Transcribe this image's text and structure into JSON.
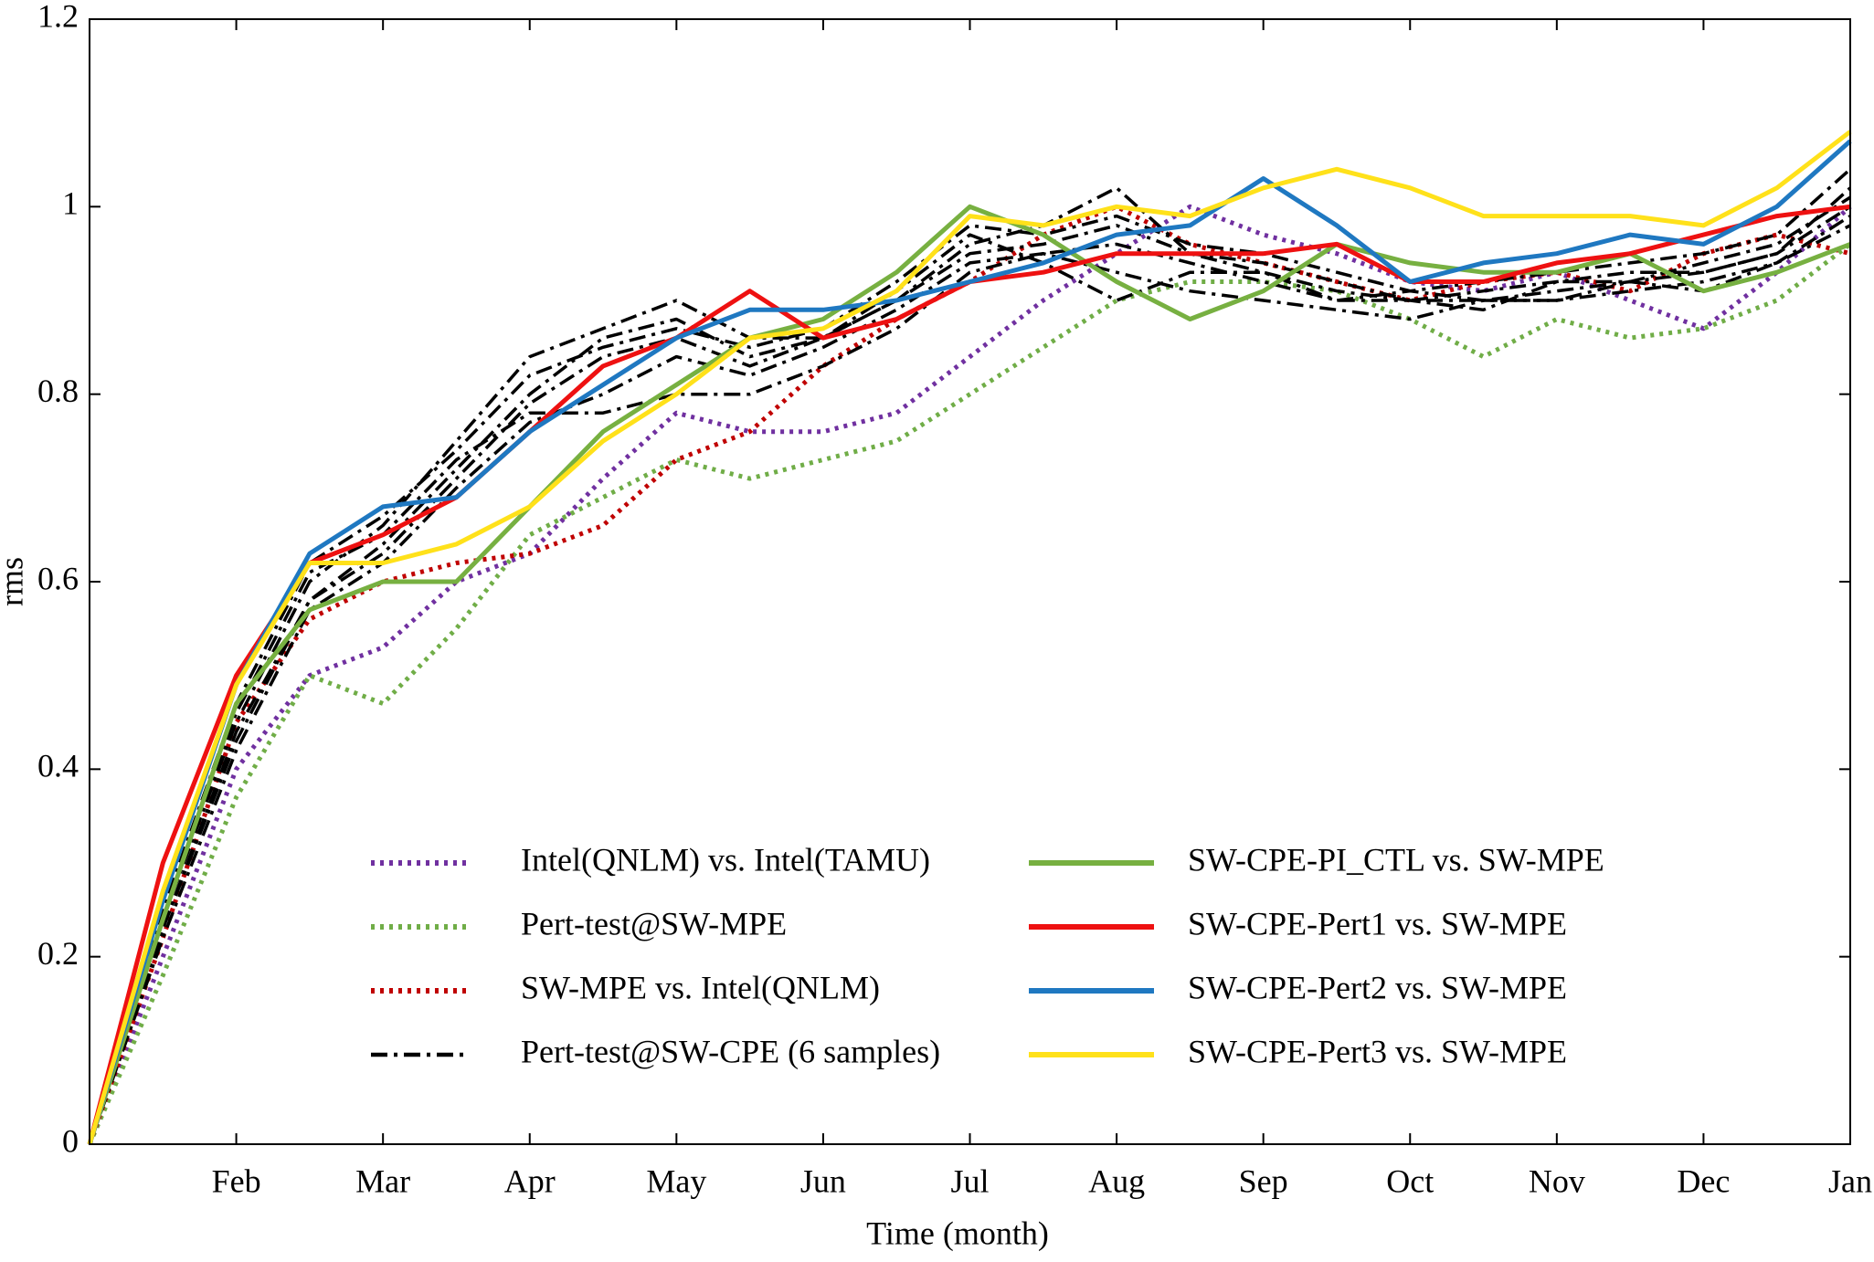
{
  "chart_data": {
    "type": "line",
    "x_label": "Time (month)",
    "y_label": "rms",
    "categories": [
      null,
      null,
      "Feb",
      null,
      "Mar",
      null,
      "Apr",
      null,
      "May",
      null,
      "Jun",
      null,
      "Jul",
      null,
      "Aug",
      null,
      "Sep",
      null,
      "Oct",
      null,
      "Nov",
      null,
      "Dec",
      null,
      "Jan"
    ],
    "ylim": [
      0,
      1.2
    ],
    "yticks": [
      0,
      0.2,
      0.4,
      0.6,
      0.8,
      1,
      1.2
    ],
    "series": [
      {
        "name": "Intel(QNLM) vs. Intel(TAMU)",
        "color": "#7030a0",
        "style": "dotted",
        "values": [
          0,
          0.2,
          0.4,
          0.5,
          0.53,
          0.6,
          0.63,
          0.71,
          0.78,
          0.76,
          0.76,
          0.78,
          0.84,
          0.9,
          0.95,
          1.0,
          0.97,
          0.95,
          0.92,
          0.91,
          0.93,
          0.9,
          0.87,
          0.93,
          1.0
        ]
      },
      {
        "name": "Pert-test@SW-MPE",
        "color": "#70ad47",
        "style": "dotted",
        "values": [
          0,
          0.18,
          0.37,
          0.5,
          0.47,
          0.55,
          0.65,
          0.69,
          0.73,
          0.71,
          0.73,
          0.75,
          0.8,
          0.85,
          0.9,
          0.92,
          0.92,
          0.91,
          0.88,
          0.84,
          0.88,
          0.86,
          0.87,
          0.9,
          0.96
        ]
      },
      {
        "name": "SW-MPE vs. Intel(QNLM)",
        "color": "#c00000",
        "style": "dotted",
        "values": [
          0,
          0.22,
          0.45,
          0.56,
          0.6,
          0.62,
          0.63,
          0.66,
          0.73,
          0.76,
          0.83,
          0.88,
          0.92,
          0.97,
          1.0,
          0.96,
          0.94,
          0.92,
          0.9,
          0.92,
          0.93,
          0.91,
          0.95,
          0.97,
          0.95
        ]
      },
      {
        "name": "Pert-test@SW-CPE (6 samples)",
        "color": "#000000",
        "style": "dashdot",
        "samples": [
          [
            0,
            0.24,
            0.45,
            0.6,
            0.66,
            0.75,
            0.84,
            0.87,
            0.9,
            0.86,
            0.86,
            0.9,
            0.96,
            0.98,
            1.02,
            0.95,
            0.93,
            0.91,
            0.9,
            0.9,
            0.91,
            0.92,
            0.93,
            0.95,
            1.02
          ],
          [
            0,
            0.23,
            0.44,
            0.58,
            0.64,
            0.72,
            0.8,
            0.86,
            0.88,
            0.84,
            0.86,
            0.9,
            0.95,
            0.96,
            0.98,
            0.95,
            0.94,
            0.92,
            0.9,
            0.91,
            0.92,
            0.93,
            0.93,
            0.95,
            1.0
          ],
          [
            0,
            0.22,
            0.42,
            0.57,
            0.62,
            0.7,
            0.77,
            0.8,
            0.84,
            0.82,
            0.85,
            0.89,
            0.94,
            0.95,
            0.93,
            0.91,
            0.9,
            0.89,
            0.88,
            0.9,
            0.9,
            0.91,
            0.92,
            0.94,
            0.99
          ],
          [
            0,
            0.24,
            0.46,
            0.61,
            0.65,
            0.73,
            0.78,
            0.78,
            0.8,
            0.8,
            0.83,
            0.87,
            0.93,
            0.95,
            0.96,
            0.94,
            0.92,
            0.9,
            0.9,
            0.89,
            0.92,
            0.92,
            0.94,
            0.96,
            1.01
          ],
          [
            0,
            0.23,
            0.43,
            0.58,
            0.63,
            0.71,
            0.79,
            0.84,
            0.86,
            0.83,
            0.86,
            0.91,
            0.97,
            0.94,
            0.9,
            0.93,
            0.93,
            0.9,
            0.91,
            0.9,
            0.9,
            0.92,
            0.91,
            0.94,
            0.98
          ],
          [
            0,
            0.25,
            0.47,
            0.62,
            0.67,
            0.74,
            0.82,
            0.85,
            0.87,
            0.85,
            0.87,
            0.92,
            0.98,
            0.97,
            0.99,
            0.96,
            0.95,
            0.93,
            0.91,
            0.92,
            0.93,
            0.94,
            0.95,
            0.97,
            1.04
          ]
        ]
      },
      {
        "name": "SW-CPE-PI_CTL vs.  SW-MPE",
        "color": "#77b041",
        "style": "solid",
        "values": [
          0,
          0.24,
          0.47,
          0.57,
          0.6,
          0.6,
          0.68,
          0.76,
          0.81,
          0.86,
          0.88,
          0.93,
          1.0,
          0.97,
          0.92,
          0.88,
          0.91,
          0.96,
          0.94,
          0.93,
          0.93,
          0.95,
          0.91,
          0.93,
          0.96
        ]
      },
      {
        "name": "SW-CPE-Pert1 vs.  SW-MPE",
        "color": "#ee1111",
        "style": "solid",
        "values": [
          0,
          0.3,
          0.5,
          0.62,
          0.65,
          0.69,
          0.76,
          0.83,
          0.86,
          0.91,
          0.86,
          0.88,
          0.92,
          0.93,
          0.95,
          0.95,
          0.95,
          0.96,
          0.92,
          0.92,
          0.94,
          0.95,
          0.97,
          0.99,
          1.0
        ]
      },
      {
        "name": "SW-CPE-Pert2 vs.  SW-MPE",
        "color": "#1f78c1",
        "style": "solid",
        "values": [
          0,
          0.26,
          0.49,
          0.63,
          0.68,
          0.69,
          0.76,
          0.81,
          0.86,
          0.89,
          0.89,
          0.9,
          0.92,
          0.94,
          0.97,
          0.98,
          1.03,
          0.98,
          0.92,
          0.94,
          0.95,
          0.97,
          0.96,
          1.0,
          1.07
        ]
      },
      {
        "name": "SW-CPE-Pert3 vs.  SW-MPE",
        "color": "#ffe11a",
        "style": "solid",
        "values": [
          0,
          0.27,
          0.49,
          0.62,
          0.62,
          0.64,
          0.68,
          0.75,
          0.8,
          0.86,
          0.87,
          0.91,
          0.99,
          0.98,
          1.0,
          0.99,
          1.02,
          1.04,
          1.02,
          0.99,
          0.99,
          0.99,
          0.98,
          1.02,
          1.08
        ]
      }
    ]
  }
}
